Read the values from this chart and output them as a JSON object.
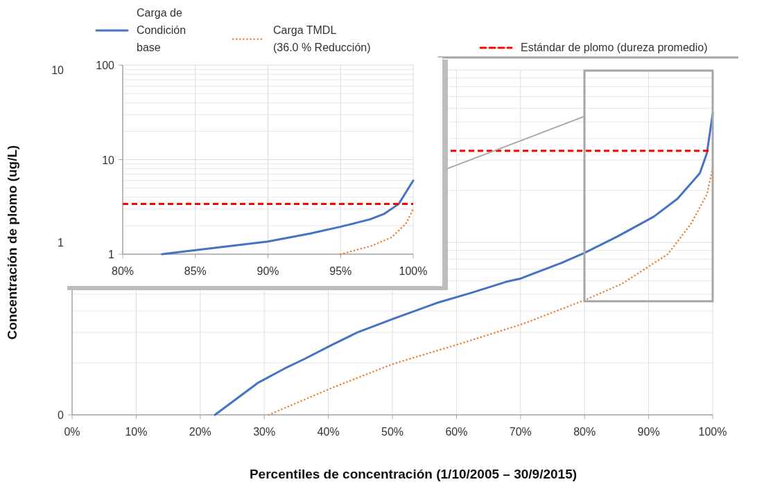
{
  "chart_data": [
    {
      "type": "line",
      "xlabel": "Percentiles de concentración (1/10/2005 – 30/9/2015)",
      "ylabel": "Concentración de plomo (ug/L)",
      "xlim": [
        0,
        100
      ],
      "xticks": [
        {
          "value": 0,
          "label": "0%"
        },
        {
          "value": 10,
          "label": "10%"
        },
        {
          "value": 20,
          "label": "20%"
        },
        {
          "value": 30,
          "label": "30%"
        },
        {
          "value": 40,
          "label": "40%"
        },
        {
          "value": 50,
          "label": "50%"
        },
        {
          "value": 60,
          "label": "60%"
        },
        {
          "value": 70,
          "label": "70%"
        },
        {
          "value": 80,
          "label": "80%"
        },
        {
          "value": 90,
          "label": "90%"
        },
        {
          "value": 100,
          "label": "100%"
        }
      ],
      "ylim": [
        0.1,
        10
      ],
      "yticks": [
        {
          "value": 0.1,
          "label": "0"
        },
        1,
        10
      ],
      "log": "y",
      "grid": true,
      "legend": "top",
      "series": [
        {
          "name": "Carga de Condición base",
          "color": "#4472c4",
          "line_style": "solid",
          "x": [
            22.3,
            29.1,
            33.1,
            36.4,
            40.7,
            44.5,
            50.2,
            56.9,
            62.3,
            67.7,
            69.9,
            76.4,
            80,
            85.1,
            90.8,
            94.5,
            98,
            99.1,
            100
          ],
          "values": [
            0.1,
            0.154,
            0.185,
            0.212,
            0.256,
            0.3,
            0.361,
            0.445,
            0.51,
            0.59,
            0.615,
            0.76,
            0.87,
            1.08,
            1.41,
            1.79,
            2.52,
            3.3,
            5.6
          ]
        },
        {
          "name": "Carga TMDL (36.0 % Reducción)",
          "color": "#ed7d31",
          "line_style": "dotted",
          "x": [
            30.7,
            40.7,
            50.2,
            60.2,
            70.5,
            80.2,
            85.8,
            93,
            96.6,
            99.1,
            100
          ],
          "values": [
            0.1,
            0.144,
            0.198,
            0.256,
            0.338,
            0.466,
            0.574,
            0.855,
            1.28,
            1.9,
            2.7
          ]
        }
      ],
      "ref_lines": [
        {
          "axis": "y",
          "value": 3.4,
          "label": "Estándar de plomo  (dureza promedio)",
          "color": "#ff0000",
          "line_style": "dashed"
        }
      ]
    },
    {
      "type": "line",
      "xlim": [
        80,
        100
      ],
      "xticks": [
        {
          "value": 80,
          "label": "80%"
        },
        {
          "value": 85,
          "label": "85%"
        },
        {
          "value": 90,
          "label": "90%"
        },
        {
          "value": 95,
          "label": "95%"
        },
        {
          "value": 100,
          "label": "100%"
        }
      ],
      "ylim": [
        1,
        100
      ],
      "yticks": [
        1,
        10,
        100
      ],
      "log": "y",
      "grid": true,
      "series": [
        {
          "color": "#4472c4",
          "line_style": "solid",
          "x": [
            82.7,
            85,
            90,
            92.9,
            95,
            97,
            98,
            99,
            100
          ],
          "values": [
            1,
            1.1,
            1.36,
            1.65,
            1.95,
            2.33,
            2.67,
            3.39,
            6
          ]
        },
        {
          "color": "#ed7d31",
          "line_style": "dotted",
          "x": [
            95,
            97.1,
            98.5,
            99.5,
            100
          ],
          "values": [
            1,
            1.22,
            1.5,
            2.1,
            3
          ]
        }
      ],
      "ref_lines": [
        {
          "axis": "y",
          "value": 3.4,
          "color": "#ff0000",
          "line_style": "dashed"
        }
      ]
    }
  ]
}
